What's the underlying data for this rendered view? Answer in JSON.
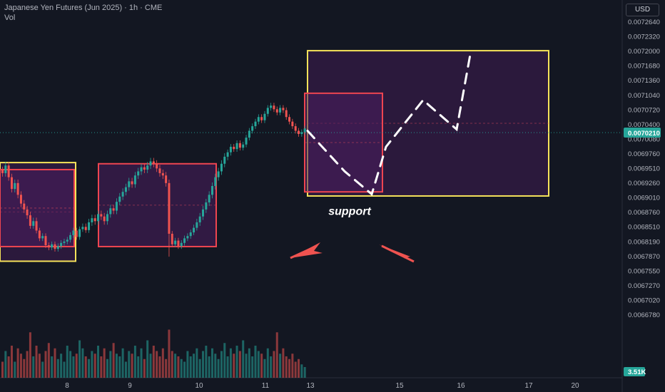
{
  "header": {
    "title": "Japanese Yen Futures (Jun 2025) · 1h · CME",
    "volume_label": "Vol",
    "currency": "USD"
  },
  "colors": {
    "background": "#131722",
    "up": "#26a69a",
    "down": "#ef5350",
    "box_yellow": "#f6e35a",
    "box_red": "#ef4550",
    "box_fill": "#4a1d5e",
    "annotation": "#ffffff",
    "price_badge": "#26a69a",
    "volume_badge": "#26a69a"
  },
  "chart_data": {
    "type": "candlestick",
    "title": "Japanese Yen Futures (Jun 2025) · 1h · CME",
    "x_ticks": [
      "8",
      "9",
      "10",
      "11",
      "13",
      "15",
      "16",
      "17",
      "20"
    ],
    "y_ticks": [
      "0.0072640",
      "0.0072320",
      "0.0072000",
      "0.0071680",
      "0.0071360",
      "0.0071040",
      "0.0070720",
      "0.0070400",
      "0.0070080",
      "0.0069760",
      "0.0069510",
      "0.0069260",
      "0.0069010",
      "0.0068760",
      "0.0068510",
      "0.0068190",
      "0.0067870",
      "0.0067550",
      "0.0067270",
      "0.0067020",
      "0.0066780"
    ],
    "last_price": "0.0070210",
    "last_volume": "3.51K",
    "ohlc_path": [
      0.006942,
      0.006955,
      0.006935,
      0.006915,
      0.006925,
      0.006905,
      0.00689,
      0.00688,
      0.00687,
      0.006852,
      0.00686,
      0.006842,
      0.006825,
      0.00683,
      0.00681,
      0.006805,
      0.006812,
      0.006802,
      0.006808,
      0.006815,
      0.006818,
      0.006822,
      0.006832,
      0.006842,
      0.006828,
      0.006845,
      0.00685,
      0.006843,
      0.006858,
      0.006865,
      0.00686,
      0.006872,
      0.006868,
      0.00686,
      0.006872,
      0.006882,
      0.006878,
      0.006893,
      0.006902,
      0.00691,
      0.006918,
      0.006928,
      0.006923,
      0.006938,
      0.006945,
      0.006952,
      0.006948,
      0.006955,
      0.006962,
      0.006958,
      0.00695,
      0.006942,
      0.006938,
      0.006925,
      0.006835,
      0.006812,
      0.00682,
      0.006808,
      0.006815,
      0.006825,
      0.00683,
      0.006838,
      0.006848,
      0.006858,
      0.006868,
      0.00688,
      0.006892,
      0.006905,
      0.00692,
      0.006935,
      0.006945,
      0.006958,
      0.00697,
      0.006978,
      0.00699,
      0.006985,
      0.006998,
      0.006988,
      0.006995,
      0.00701,
      0.007025,
      0.007035,
      0.007045,
      0.007055,
      0.007048,
      0.007062,
      0.007075,
      0.00708,
      0.007072,
      0.007065,
      0.007075,
      0.00707,
      0.007055,
      0.007045,
      0.007035,
      0.007025,
      0.007018,
      0.007022,
      0.00703
    ],
    "volume_path": [
      0.3,
      0.5,
      0.4,
      0.6,
      0.3,
      0.55,
      0.45,
      0.35,
      0.5,
      0.85,
      0.4,
      0.6,
      0.45,
      0.3,
      0.5,
      0.65,
      0.4,
      0.55,
      0.35,
      0.45,
      0.3,
      0.6,
      0.5,
      0.4,
      0.45,
      0.7,
      0.55,
      0.4,
      0.35,
      0.5,
      0.45,
      0.6,
      0.4,
      0.55,
      0.35,
      0.5,
      0.65,
      0.45,
      0.4,
      0.55,
      0.3,
      0.5,
      0.45,
      0.6,
      0.4,
      0.55,
      0.35,
      0.7,
      0.45,
      0.6,
      0.5,
      0.4,
      0.55,
      0.35,
      0.9,
      0.5,
      0.45,
      0.4,
      0.35,
      0.3,
      0.5,
      0.4,
      0.45,
      0.55,
      0.35,
      0.5,
      0.6,
      0.4,
      0.55,
      0.45,
      0.35,
      0.5,
      0.65,
      0.4,
      0.55,
      0.45,
      0.6,
      0.5,
      0.7,
      0.45,
      0.55,
      0.4,
      0.6,
      0.5,
      0.45,
      0.35,
      0.55,
      0.4,
      0.5,
      0.85,
      0.45,
      0.55,
      0.4,
      0.35,
      0.45,
      0.3,
      0.35,
      0.25,
      0.2
    ],
    "boxes": [
      {
        "kind": "yellow",
        "x_from": 0.0,
        "x_to": 106,
        "y_top": 0.00696,
        "y_bottom": 0.006775
      },
      {
        "kind": "red",
        "x_from": 0.0,
        "x_to": 104,
        "y_top": 0.006948,
        "y_bottom": 0.006807
      },
      {
        "kind": "red",
        "x_from": 138,
        "x_to": 303,
        "y_top": 0.006958,
        "y_bottom": 0.006807
      },
      {
        "kind": "yellow",
        "x_from": 431,
        "x_to": 769,
        "y_top": 0.0072,
        "y_bottom": 0.006903
      },
      {
        "kind": "red",
        "x_from": 427,
        "x_to": 536,
        "y_top": 0.007107,
        "y_bottom": 0.00691
      }
    ],
    "projection": [
      0.007025,
      0.006945,
      0.006906,
      0.00699,
      0.007092,
      0.007028,
      0.0072
    ],
    "annotation": "support"
  }
}
